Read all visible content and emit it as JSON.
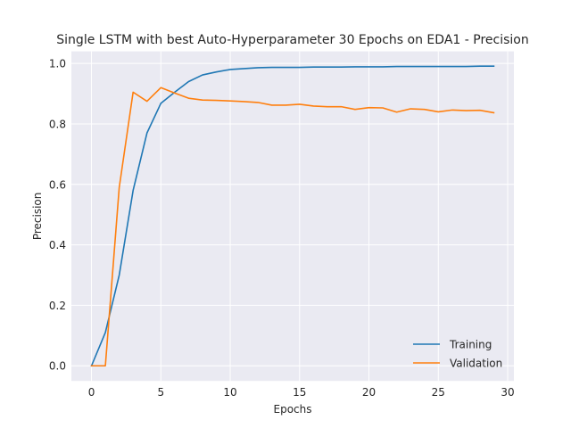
{
  "chart_data": {
    "type": "line",
    "title": "Single LSTM with best Auto-Hyperparameter 30 Epochs on EDA1 - Precision",
    "xlabel": "Epochs",
    "ylabel": "Precision",
    "xlim": [
      -1.45,
      30.45
    ],
    "ylim": [
      -0.05,
      1.04
    ],
    "xticks": [
      0,
      5,
      10,
      15,
      20,
      25,
      30
    ],
    "yticks": [
      0.0,
      0.2,
      0.4,
      0.6,
      0.8,
      1.0
    ],
    "xtick_labels": [
      "0",
      "5",
      "10",
      "15",
      "20",
      "25",
      "30"
    ],
    "ytick_labels": [
      "0.0",
      "0.2",
      "0.4",
      "0.6",
      "0.8",
      "1.0"
    ],
    "grid": true,
    "legend_position": "lower-right",
    "x": [
      0,
      1,
      2,
      3,
      4,
      5,
      6,
      7,
      8,
      9,
      10,
      11,
      12,
      13,
      14,
      15,
      16,
      17,
      18,
      19,
      20,
      21,
      22,
      23,
      24,
      25,
      26,
      27,
      28,
      29
    ],
    "series": [
      {
        "name": "Training",
        "color": "#1f77b4",
        "values": [
          0.0,
          0.11,
          0.3,
          0.58,
          0.77,
          0.868,
          0.905,
          0.94,
          0.962,
          0.972,
          0.98,
          0.983,
          0.986,
          0.987,
          0.987,
          0.987,
          0.988,
          0.988,
          0.988,
          0.989,
          0.989,
          0.989,
          0.99,
          0.99,
          0.99,
          0.99,
          0.99,
          0.99,
          0.991,
          0.991
        ]
      },
      {
        "name": "Validation",
        "color": "#ff7f0e",
        "values": [
          0.0,
          0.0,
          0.59,
          0.905,
          0.875,
          0.92,
          0.902,
          0.885,
          0.879,
          0.878,
          0.876,
          0.874,
          0.871,
          0.862,
          0.862,
          0.865,
          0.859,
          0.857,
          0.857,
          0.848,
          0.854,
          0.853,
          0.839,
          0.85,
          0.848,
          0.84,
          0.846,
          0.844,
          0.845,
          0.837
        ]
      }
    ]
  }
}
